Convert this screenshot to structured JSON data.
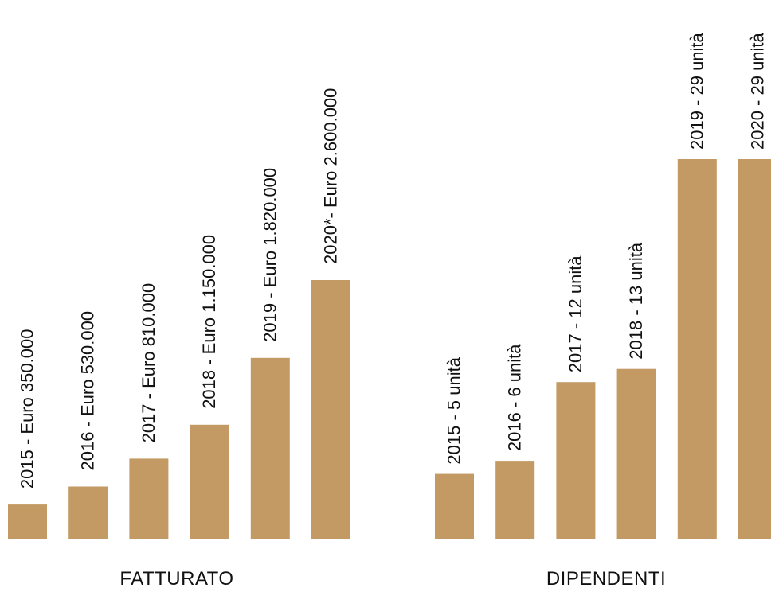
{
  "colors": {
    "bar": "#C39A64",
    "text": "#111111",
    "background": "#FFFFFF"
  },
  "chart_data": [
    {
      "type": "bar",
      "title": "FATTURATO",
      "categories": [
        "2015",
        "2016",
        "2017",
        "2018",
        "2019",
        "2020*"
      ],
      "values": [
        350000,
        530000,
        810000,
        1150000,
        1820000,
        2600000
      ],
      "labels": [
        "2015 - Euro 350.000",
        "2016 - Euro 530.000",
        "2017 - Euro 810.000",
        "2018 - Euro 1.150.000",
        "2019 - Euro 1.820.000",
        "2020*- Euro 2.600.000"
      ],
      "label_orientation": "vertical",
      "axes_visible": false,
      "grid": false
    },
    {
      "type": "bar",
      "title": "DIPENDENTI",
      "categories": [
        "2015",
        "2016",
        "2017",
        "2018",
        "2019",
        "2020"
      ],
      "values": [
        5,
        6,
        12,
        13,
        29,
        29
      ],
      "labels": [
        "2015 - 5 unità",
        "2016 - 6 unità",
        "2017 - 12 unità",
        "2018 - 13 unità",
        "2019 - 29 unità",
        "2020 - 29 unità"
      ],
      "label_orientation": "vertical",
      "axes_visible": false,
      "grid": false
    }
  ]
}
